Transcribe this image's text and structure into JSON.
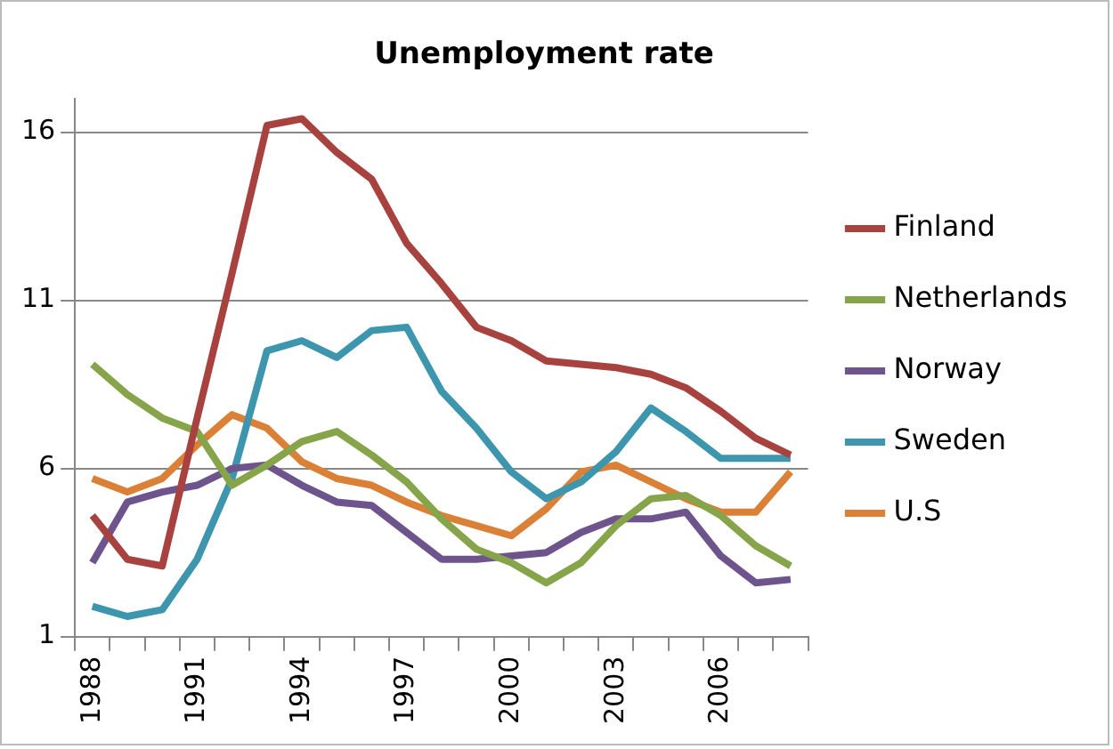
{
  "chart_data": {
    "type": "line",
    "title": "Unemployment rate",
    "categories": [
      "1988",
      null,
      null,
      "1991",
      null,
      null,
      "1994",
      null,
      null,
      "1997",
      null,
      null,
      "2000",
      null,
      null,
      "2003",
      null,
      null,
      "2006",
      null,
      null
    ],
    "series": [
      {
        "name": "Finland",
        "color": "#a8423f",
        "values": [
          4.6,
          3.3,
          3.1,
          7.5,
          11.8,
          16.2,
          16.4,
          15.4,
          14.6,
          12.7,
          11.5,
          10.2,
          9.8,
          9.2,
          9.1,
          9.0,
          8.8,
          8.4,
          7.7,
          6.9,
          6.4
        ]
      },
      {
        "name": "Netherlands",
        "color": "#86a44a",
        "values": [
          9.1,
          8.2,
          7.5,
          7.1,
          5.5,
          6.1,
          6.8,
          7.1,
          6.4,
          5.6,
          4.5,
          3.6,
          3.2,
          2.6,
          3.2,
          4.3,
          5.1,
          5.2,
          4.6,
          3.7,
          3.1
        ]
      },
      {
        "name": "Norway",
        "color": "#6e548d",
        "values": [
          3.2,
          5.0,
          5.3,
          5.5,
          6.0,
          6.1,
          5.5,
          5.0,
          4.9,
          4.1,
          3.3,
          3.3,
          3.4,
          3.5,
          4.1,
          4.5,
          4.5,
          4.7,
          3.4,
          2.6,
          2.7
        ]
      },
      {
        "name": "Sweden",
        "color": "#3d96ae",
        "values": [
          1.9,
          1.6,
          1.8,
          3.3,
          5.7,
          9.5,
          9.8,
          9.3,
          10.1,
          10.2,
          8.3,
          7.2,
          5.9,
          5.1,
          5.6,
          6.5,
          7.8,
          7.1,
          6.3,
          6.3,
          6.3
        ]
      },
      {
        "name": "U.S",
        "color": "#da8137",
        "values": [
          5.7,
          5.3,
          5.7,
          6.7,
          7.6,
          7.2,
          6.2,
          5.7,
          5.5,
          5.0,
          4.6,
          4.3,
          4.0,
          4.8,
          5.9,
          6.1,
          5.6,
          5.1,
          4.7,
          4.7,
          5.9
        ]
      }
    ],
    "ylim": [
      1,
      17
    ],
    "yticks": [
      1,
      6,
      11,
      16
    ],
    "grid": "y",
    "legend": "right",
    "marker": "none",
    "line_style": "solid"
  }
}
